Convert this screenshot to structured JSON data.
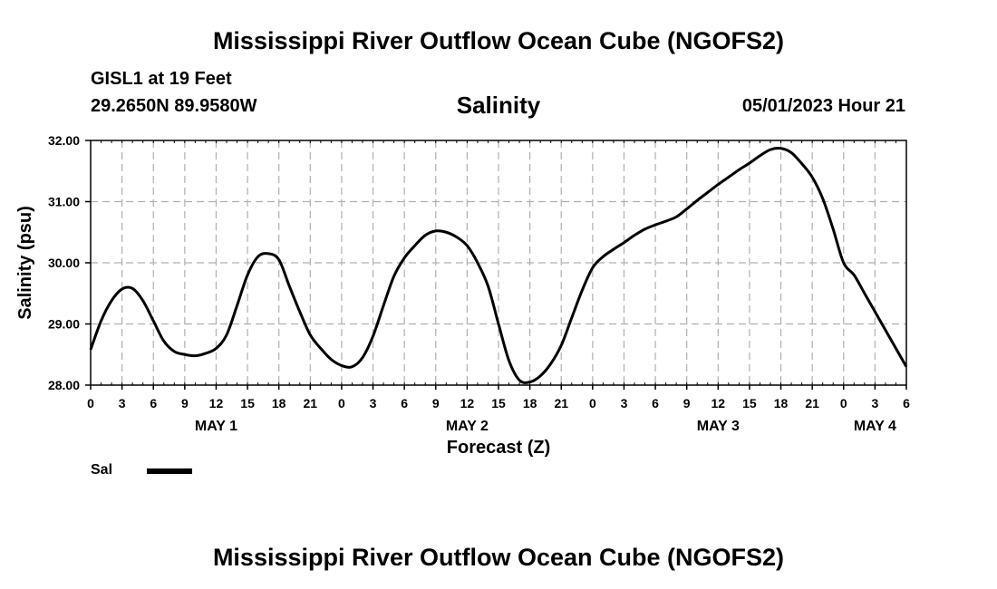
{
  "header": {
    "title": "Mississippi River Outflow Ocean Cube (NGOFS2)",
    "station": "GISL1 at 19 Feet",
    "coords": "29.2650N  89.9580W",
    "plot_title": "Salinity",
    "datetime": "05/01/2023 Hour 21"
  },
  "footer": {
    "title": "Mississippi River Outflow Ocean Cube (NGOFS2)"
  },
  "legend": {
    "label": "Sal",
    "color": "#000000"
  },
  "chart_data": {
    "type": "line",
    "title": "Salinity",
    "xlabel": "Forecast (Z)",
    "ylabel": "Salinity (psu)",
    "ylim": [
      28.0,
      32.0
    ],
    "xlim": [
      0,
      78
    ],
    "y_ticks": [
      "28.00",
      "29.00",
      "30.00",
      "31.00",
      "32.00"
    ],
    "x_ticks": [
      "0",
      "3",
      "6",
      "9",
      "12",
      "15",
      "18",
      "21",
      "0",
      "3",
      "6",
      "9",
      "12",
      "15",
      "18",
      "21",
      "0",
      "3",
      "6",
      "9",
      "12",
      "15",
      "18",
      "21",
      "0",
      "3",
      "6"
    ],
    "day_labels": [
      {
        "label": "MAY 1",
        "hour": 12
      },
      {
        "label": "MAY 2",
        "hour": 36
      },
      {
        "label": "MAY 3",
        "hour": 60
      },
      {
        "label": "MAY 4",
        "hour": 75
      }
    ],
    "grid": true,
    "series": [
      {
        "name": "Sal",
        "x": [
          0,
          1,
          2,
          3,
          4,
          5,
          6,
          7,
          8,
          9,
          10,
          11,
          12,
          13,
          14,
          15,
          16,
          17,
          18,
          19,
          20,
          21,
          22,
          23,
          24,
          25,
          26,
          27,
          28,
          29,
          30,
          31,
          32,
          33,
          34,
          35,
          36,
          37,
          38,
          39,
          40,
          41,
          42,
          43,
          44,
          45,
          46,
          47,
          48,
          49,
          50,
          51,
          52,
          53,
          54,
          55,
          56,
          57,
          58,
          59,
          60,
          61,
          62,
          63,
          64,
          65,
          66,
          67,
          68,
          69,
          70,
          71,
          72,
          73,
          74,
          75,
          76,
          77,
          78
        ],
        "values": [
          28.58,
          29.05,
          29.38,
          29.57,
          29.58,
          29.38,
          29.05,
          28.72,
          28.55,
          28.5,
          28.48,
          28.52,
          28.6,
          28.82,
          29.3,
          29.8,
          30.1,
          30.15,
          30.05,
          29.62,
          29.2,
          28.82,
          28.6,
          28.42,
          28.32,
          28.3,
          28.45,
          28.8,
          29.3,
          29.78,
          30.08,
          30.28,
          30.45,
          30.52,
          30.5,
          30.42,
          30.28,
          30.0,
          29.62,
          29.0,
          28.4,
          28.08,
          28.05,
          28.15,
          28.35,
          28.65,
          29.1,
          29.55,
          29.92,
          30.1,
          30.22,
          30.33,
          30.45,
          30.55,
          30.62,
          30.68,
          30.75,
          30.88,
          31.02,
          31.15,
          31.28,
          31.4,
          31.52,
          31.63,
          31.75,
          31.85,
          31.87,
          31.8,
          31.62,
          31.4,
          31.05,
          30.55,
          30.0,
          29.8,
          29.5,
          29.2,
          28.9,
          28.6,
          28.3
        ]
      }
    ]
  }
}
